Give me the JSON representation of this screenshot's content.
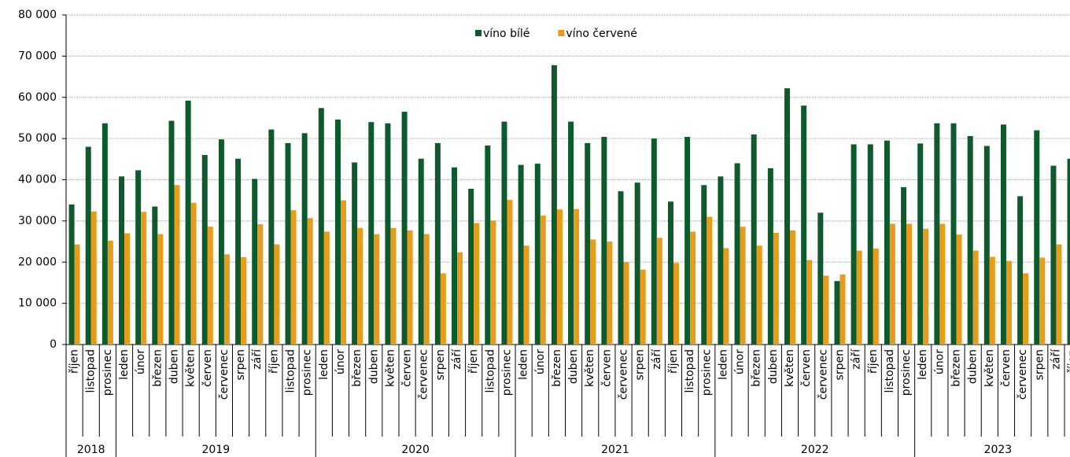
{
  "chart_data": {
    "type": "bar",
    "groups": [
      {
        "label": "2018",
        "categories": [
          "říjen",
          "listopad",
          "prosinec"
        ]
      },
      {
        "label": "2019",
        "categories": [
          "leden",
          "únor",
          "březen",
          "duben",
          "květen",
          "červen",
          "červenec",
          "srpen",
          "září",
          "říjen",
          "listopad",
          "prosinec"
        ]
      },
      {
        "label": "2020",
        "categories": [
          "leden",
          "únor",
          "březen",
          "duben",
          "květen",
          "červen",
          "červenec",
          "srpen",
          "září",
          "říjen",
          "listopad",
          "prosinec"
        ]
      },
      {
        "label": "2021",
        "categories": [
          "leden",
          "únor",
          "březen",
          "duben",
          "květen",
          "červen",
          "červenec",
          "srpen",
          "září",
          "říjen",
          "listopad",
          "prosinec"
        ]
      },
      {
        "label": "2022",
        "categories": [
          "leden",
          "únor",
          "březen",
          "duben",
          "květen",
          "červen",
          "červenec",
          "srpen",
          "září",
          "říjen",
          "listopad",
          "prosinec"
        ]
      },
      {
        "label": "2023",
        "categories": [
          "leden",
          "únor",
          "březen",
          "duben",
          "květen",
          "červen",
          "červenec",
          "srpen",
          "září",
          "říjen"
        ]
      }
    ],
    "series": [
      {
        "name": "víno bílé",
        "color": "#0e5a2c",
        "values": [
          34000,
          48000,
          53700,
          40800,
          42300,
          33500,
          54300,
          59200,
          46000,
          49800,
          45100,
          40200,
          52200,
          48900,
          51300,
          57400,
          54600,
          44200,
          54000,
          53700,
          56500,
          45100,
          48900,
          43000,
          37800,
          48300,
          54100,
          43600,
          43900,
          67800,
          54100,
          48900,
          50400,
          37200,
          39300,
          50000,
          34700,
          50400,
          38700,
          40800,
          44000,
          51000,
          42800,
          62200,
          58000,
          32000,
          15400,
          48600,
          48600,
          49500,
          38200,
          48800,
          53700,
          53700,
          50600,
          48200,
          53400,
          36000,
          52000,
          43400,
          45100
        ]
      },
      {
        "name": "víno červené",
        "color": "#e89c1c",
        "values": [
          24300,
          32300,
          25200,
          27000,
          32200,
          26800,
          38700,
          34400,
          28600,
          21900,
          21200,
          29200,
          24300,
          32600,
          30700,
          27400,
          35000,
          28300,
          26800,
          28300,
          27700,
          26800,
          17300,
          22400,
          29500,
          30100,
          35100,
          24000,
          31300,
          32800,
          32900,
          25500,
          25000,
          20000,
          18200,
          25900,
          19800,
          27400,
          31000,
          23400,
          28600,
          24000,
          27100,
          27700,
          20500,
          16700,
          17000,
          22800,
          23300,
          29300,
          29300,
          28100,
          29300,
          26700,
          22800,
          21300,
          20300,
          17300,
          21100,
          24300,
          null
        ]
      }
    ],
    "ylim": [
      0,
      80000
    ],
    "yticks": [
      0,
      {
        "value": 10000,
        "label": "10 000"
      },
      {
        "value": 20000,
        "label": "20 000"
      },
      {
        "value": 30000,
        "label": "30 000"
      },
      {
        "value": 40000,
        "label": "40 000"
      },
      {
        "value": 50000,
        "label": "50 000"
      },
      {
        "value": 60000,
        "label": "60 000"
      },
      {
        "value": 70000,
        "label": "70 000"
      },
      {
        "value": 80000,
        "label": "80 000"
      }
    ],
    "grid": true,
    "legend_position": "top"
  }
}
